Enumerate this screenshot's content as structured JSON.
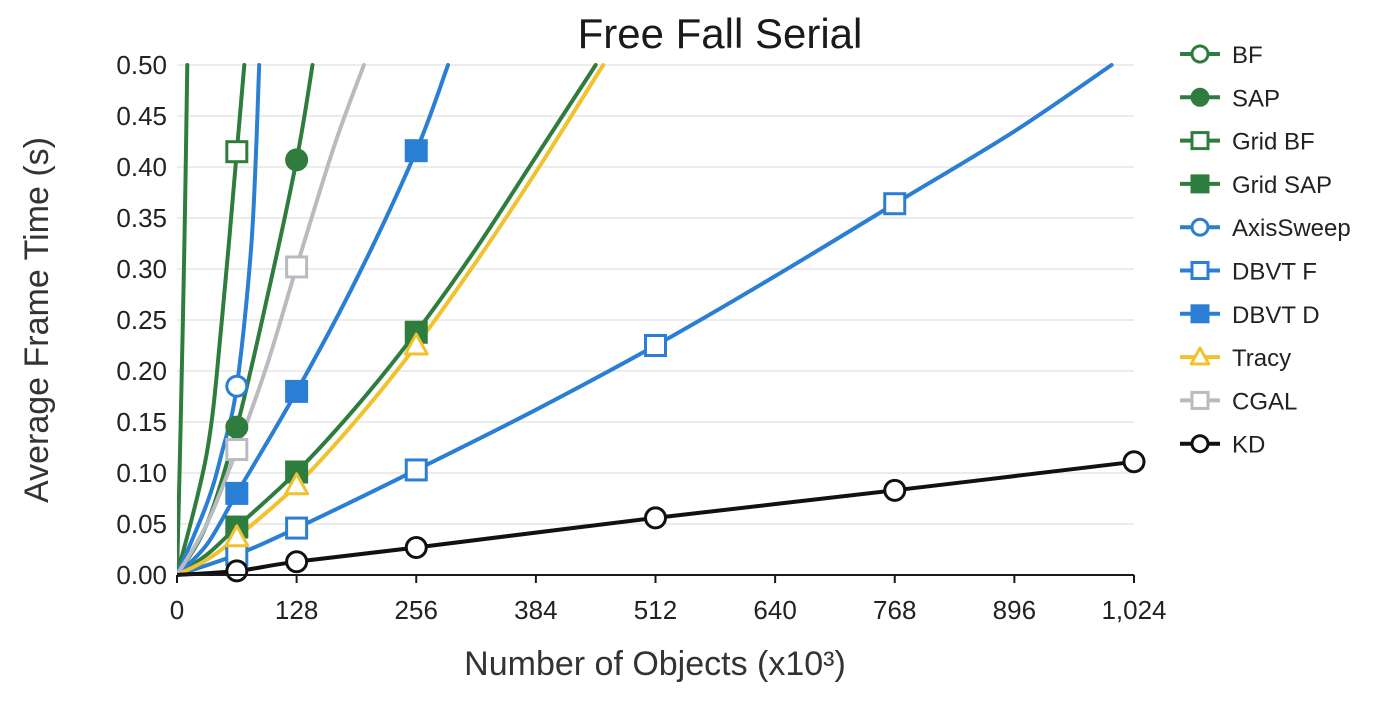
{
  "chart_data": {
    "type": "line",
    "title": "Free Fall Serial",
    "xlabel": "Number of Objects (x10³)",
    "ylabel": "Average Frame Time (s)",
    "xlim": [
      0,
      1024
    ],
    "ylim": [
      0,
      0.5
    ],
    "xticks": [
      0,
      128,
      256,
      384,
      512,
      640,
      768,
      896,
      1024
    ],
    "xtick_labels": [
      "0",
      "128",
      "256",
      "384",
      "512",
      "640",
      "768",
      "896",
      "1,024"
    ],
    "yticks": [
      0,
      0.05,
      0.1,
      0.15,
      0.2,
      0.25,
      0.3,
      0.35,
      0.4,
      0.45,
      0.5
    ],
    "ytick_labels": [
      "0.00",
      "0.05",
      "0.10",
      "0.15",
      "0.20",
      "0.25",
      "0.30",
      "0.35",
      "0.40",
      "0.45",
      "0.50"
    ],
    "grid": "horizontal",
    "legend_position": "right",
    "series": [
      {
        "name": "BF",
        "color": "#2e7d3e",
        "marker": "circle-open",
        "line": [
          [
            0,
            0
          ],
          [
            4,
            0.15
          ],
          [
            8,
            0.33
          ],
          [
            11,
            0.5
          ]
        ],
        "points": []
      },
      {
        "name": "SAP",
        "color": "#2e7d3e",
        "marker": "circle-filled",
        "line": [
          [
            0,
            0
          ],
          [
            32,
            0.05
          ],
          [
            64,
            0.145
          ],
          [
            96,
            0.27
          ],
          [
            128,
            0.407
          ],
          [
            145,
            0.5
          ]
        ],
        "points": [
          [
            64,
            0.145
          ],
          [
            128,
            0.407
          ]
        ]
      },
      {
        "name": "Grid BF",
        "color": "#2e7d3e",
        "marker": "square-open",
        "line": [
          [
            0,
            0
          ],
          [
            32,
            0.12
          ],
          [
            48,
            0.25
          ],
          [
            64,
            0.415
          ],
          [
            72,
            0.5
          ]
        ],
        "points": [
          [
            64,
            0.415
          ]
        ]
      },
      {
        "name": "Grid SAP",
        "color": "#2e7d3e",
        "marker": "square-filled",
        "line": [
          [
            0,
            0
          ],
          [
            32,
            0.02
          ],
          [
            64,
            0.047
          ],
          [
            128,
            0.101
          ],
          [
            192,
            0.165
          ],
          [
            256,
            0.238
          ],
          [
            320,
            0.32
          ],
          [
            384,
            0.41
          ],
          [
            448,
            0.5
          ]
        ],
        "points": [
          [
            64,
            0.047
          ],
          [
            128,
            0.101
          ],
          [
            256,
            0.238
          ]
        ]
      },
      {
        "name": "AxisSweep",
        "color": "#2a7fd4",
        "marker": "circle-open",
        "line": [
          [
            0,
            0
          ],
          [
            32,
            0.07
          ],
          [
            48,
            0.12
          ],
          [
            64,
            0.185
          ],
          [
            80,
            0.33
          ],
          [
            88,
            0.5
          ]
        ],
        "points": [
          [
            64,
            0.185
          ]
        ]
      },
      {
        "name": "DBVT F",
        "color": "#2a7fd4",
        "marker": "square-open",
        "line": [
          [
            0,
            0
          ],
          [
            64,
            0.02
          ],
          [
            128,
            0.046
          ],
          [
            256,
            0.103
          ],
          [
            384,
            0.162
          ],
          [
            512,
            0.225
          ],
          [
            640,
            0.293
          ],
          [
            768,
            0.364
          ],
          [
            896,
            0.435
          ],
          [
            1000,
            0.5
          ]
        ],
        "points": [
          [
            64,
            0.02
          ],
          [
            128,
            0.046
          ],
          [
            256,
            0.103
          ],
          [
            512,
            0.225
          ],
          [
            768,
            0.364
          ]
        ]
      },
      {
        "name": "DBVT D",
        "color": "#2a7fd4",
        "marker": "square-filled",
        "line": [
          [
            0,
            0
          ],
          [
            32,
            0.03
          ],
          [
            64,
            0.08
          ],
          [
            128,
            0.18
          ],
          [
            192,
            0.29
          ],
          [
            256,
            0.416
          ],
          [
            290,
            0.5
          ]
        ],
        "points": [
          [
            64,
            0.08
          ],
          [
            128,
            0.18
          ],
          [
            256,
            0.416
          ]
        ]
      },
      {
        "name": "Tracy",
        "color": "#f2c12e",
        "marker": "triangle-open",
        "line": [
          [
            0,
            0
          ],
          [
            32,
            0.015
          ],
          [
            64,
            0.037
          ],
          [
            128,
            0.088
          ],
          [
            192,
            0.152
          ],
          [
            256,
            0.225
          ],
          [
            320,
            0.307
          ],
          [
            384,
            0.395
          ],
          [
            456,
            0.5
          ]
        ],
        "points": [
          [
            64,
            0.037
          ],
          [
            128,
            0.088
          ],
          [
            256,
            0.225
          ]
        ]
      },
      {
        "name": "CGAL",
        "color": "#b8bcc0",
        "marker": "square-open",
        "line": [
          [
            0,
            0
          ],
          [
            32,
            0.05
          ],
          [
            64,
            0.123
          ],
          [
            96,
            0.205
          ],
          [
            128,
            0.302
          ],
          [
            168,
            0.42
          ],
          [
            200,
            0.5
          ]
        ],
        "points": [
          [
            64,
            0.123
          ],
          [
            128,
            0.302
          ]
        ]
      },
      {
        "name": "KD",
        "color": "#111111",
        "marker": "circle-open",
        "line": [
          [
            0,
            0
          ],
          [
            64,
            0.004
          ],
          [
            128,
            0.013
          ],
          [
            256,
            0.027
          ],
          [
            512,
            0.056
          ],
          [
            768,
            0.083
          ],
          [
            1024,
            0.111
          ]
        ],
        "points": [
          [
            64,
            0.004
          ],
          [
            128,
            0.013
          ],
          [
            256,
            0.027
          ],
          [
            512,
            0.056
          ],
          [
            768,
            0.083
          ],
          [
            1024,
            0.111
          ]
        ]
      }
    ]
  }
}
